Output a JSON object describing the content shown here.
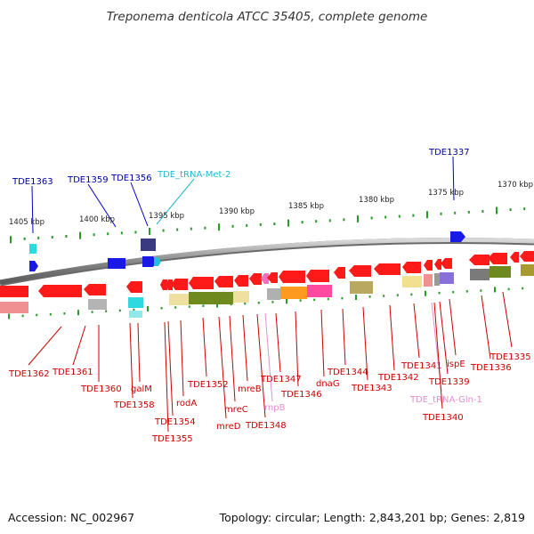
{
  "title": "Treponema denticola ATCC 35405, complete genome",
  "accession": "Accession: NC_002967",
  "topology": "Topology: circular; Length: 2,843,201 bp; Genes: 2,819",
  "colors": {
    "forward_gene": "#1a1ae6",
    "reverse_gene": "#ff1a1a",
    "trna": "#22c3d6",
    "rna": "#e890d8",
    "label_forward": "#0000aa",
    "label_reverse": "#cc0000",
    "ruler_tick": "#2a9a2a",
    "backbone": "#909090"
  },
  "scale_labels": [
    {
      "text": "1405 kbp"
    },
    {
      "text": "1400 kbp"
    },
    {
      "text": "1395 kbp"
    },
    {
      "text": "1390 kbp"
    },
    {
      "text": "1385 kbp"
    },
    {
      "text": "1380 kbp"
    },
    {
      "text": "1375 kbp"
    },
    {
      "text": "1370 kbp"
    }
  ],
  "forward_labels": [
    {
      "text": "TDE1363",
      "kind": "gene"
    },
    {
      "text": "TDE1359",
      "kind": "gene"
    },
    {
      "text": "TDE1356",
      "kind": "gene"
    },
    {
      "text": "TDE_tRNA-Met-2",
      "kind": "trna"
    },
    {
      "text": "TDE1337",
      "kind": "gene"
    }
  ],
  "reverse_labels": [
    {
      "text": "TDE1362",
      "kind": "gene"
    },
    {
      "text": "TDE1361",
      "kind": "gene"
    },
    {
      "text": "TDE1360",
      "kind": "gene"
    },
    {
      "text": "TDE1358",
      "kind": "gene"
    },
    {
      "text": "galM",
      "kind": "gene"
    },
    {
      "text": "TDE1355",
      "kind": "gene"
    },
    {
      "text": "TDE1354",
      "kind": "gene"
    },
    {
      "text": "rodA",
      "kind": "gene"
    },
    {
      "text": "TDE1352",
      "kind": "gene"
    },
    {
      "text": "mreD",
      "kind": "gene"
    },
    {
      "text": "mreC",
      "kind": "gene"
    },
    {
      "text": "mreB",
      "kind": "gene"
    },
    {
      "text": "TDE1348",
      "kind": "gene"
    },
    {
      "text": "rnpB",
      "kind": "rna"
    },
    {
      "text": "TDE1347",
      "kind": "gene"
    },
    {
      "text": "TDE1346",
      "kind": "gene"
    },
    {
      "text": "dnaG",
      "kind": "gene"
    },
    {
      "text": "TDE1344",
      "kind": "gene"
    },
    {
      "text": "TDE1343",
      "kind": "gene"
    },
    {
      "text": "TDE1342",
      "kind": "gene"
    },
    {
      "text": "TDE1341",
      "kind": "gene"
    },
    {
      "text": "TDE_tRNA-Gln-1",
      "kind": "rna"
    },
    {
      "text": "TDE1340",
      "kind": "gene"
    },
    {
      "text": "TDE1339",
      "kind": "gene"
    },
    {
      "text": "ispE",
      "kind": "gene"
    },
    {
      "text": "TDE1336",
      "kind": "gene"
    },
    {
      "text": "TDE1335",
      "kind": "gene"
    }
  ]
}
